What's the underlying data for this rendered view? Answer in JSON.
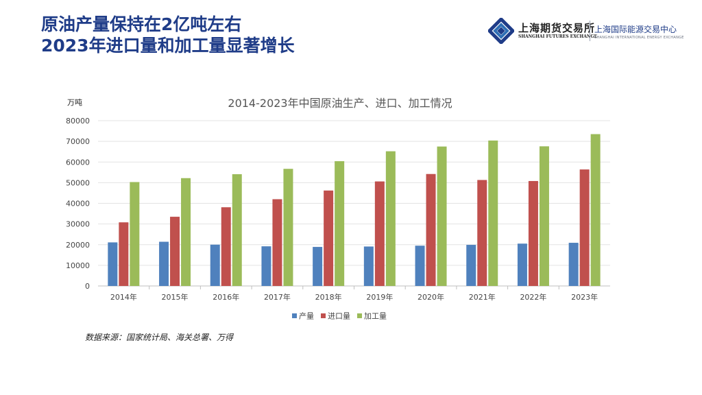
{
  "heading": {
    "line1": "原油产量保持在2亿吨左右",
    "line2": "2023年进口量和加工量显著增长"
  },
  "logo": {
    "sfe_cn": "上海期货交易所",
    "sfe_en": "SHANGHAI FUTURES EXCHANGE",
    "ine_cn": "上海国际能源交易中心",
    "ine_en": "SHANGHAI INTERNATIONAL ENERGY EXCHANGE"
  },
  "source_note": "数据来源：国家统计局、海关总署、万得",
  "colors": {
    "heading": "#1f3c88",
    "series_production": "#4f81bd",
    "series_import": "#c0504d",
    "series_processing": "#9bbb59"
  },
  "chart_data": {
    "type": "bar",
    "title": "2014-2023年中国原油生产、进口、加工情况",
    "ylabel": "万吨",
    "xlabel": "",
    "ylim": [
      0,
      80000
    ],
    "yticks": [
      "0",
      "10000",
      "20000",
      "30000",
      "40000",
      "50000",
      "60000",
      "70000",
      "80000"
    ],
    "categories": [
      "2014年",
      "2015年",
      "2016年",
      "2017年",
      "2018年",
      "2019年",
      "2020年",
      "2021年",
      "2022年",
      "2023年"
    ],
    "series": [
      {
        "name": "产量",
        "color": "#4f81bd",
        "values": [
          21100,
          21400,
          20000,
          19200,
          18900,
          19100,
          19500,
          19900,
          20500,
          20900
        ]
      },
      {
        "name": "进口量",
        "color": "#c0504d",
        "values": [
          30800,
          33500,
          38100,
          42000,
          46200,
          50600,
          54200,
          51300,
          50800,
          56400
        ]
      },
      {
        "name": "加工量",
        "color": "#9bbb59",
        "values": [
          50300,
          52200,
          54100,
          56700,
          60400,
          65200,
          67500,
          70400,
          67600,
          73500
        ]
      }
    ],
    "grid": true,
    "legend": "bottom"
  }
}
